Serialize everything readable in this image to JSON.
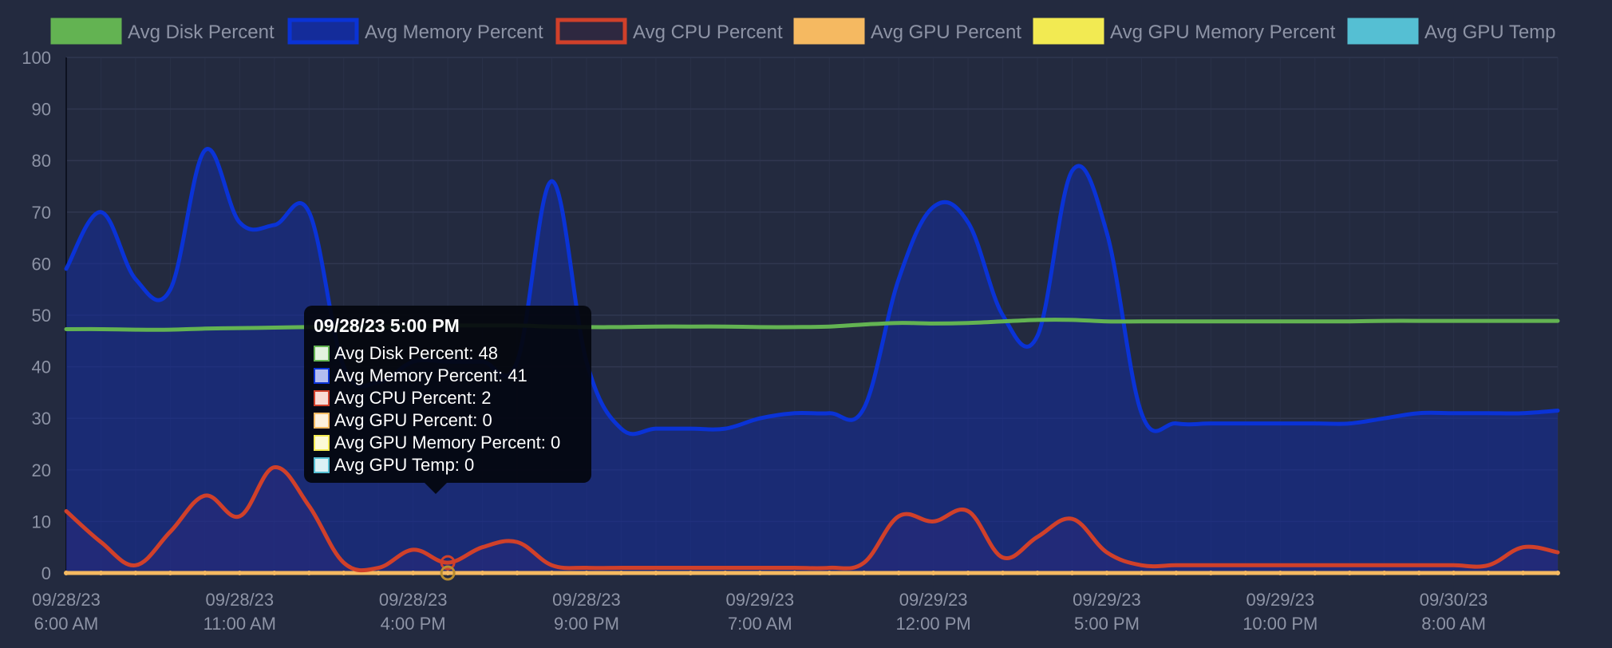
{
  "chart_data": {
    "type": "line",
    "ylim": [
      0,
      100
    ],
    "yticks": [
      0,
      10,
      20,
      30,
      40,
      50,
      60,
      70,
      80,
      90,
      100
    ],
    "x": [
      "09/28/23 6:00 AM",
      "09/28/23 7:00 AM",
      "09/28/23 8:00 AM",
      "09/28/23 9:00 AM",
      "09/28/23 10:00 AM",
      "09/28/23 11:00 AM",
      "09/28/23 12:00 PM",
      "09/28/23 1:00 PM",
      "09/28/23 2:00 PM",
      "09/28/23 3:00 PM",
      "09/28/23 4:00 PM",
      "09/28/23 5:00 PM",
      "09/28/23 6:00 PM",
      "09/28/23 7:00 PM",
      "09/28/23 8:00 PM",
      "09/28/23 9:00 PM",
      "09/28/23 10:00 PM",
      "09/28/23 11:00 PM",
      "09/29/23 5:00 AM",
      "09/29/23 6:00 AM",
      "09/29/23 7:00 AM",
      "09/29/23 8:00 AM",
      "09/29/23 9:00 AM",
      "09/29/23 10:00 AM",
      "09/29/23 11:00 AM",
      "09/29/23 12:00 PM",
      "09/29/23 1:00 PM",
      "09/29/23 2:00 PM",
      "09/29/23 3:00 PM",
      "09/29/23 4:00 PM",
      "09/29/23 5:00 PM",
      "09/29/23 6:00 PM",
      "09/29/23 7:00 PM",
      "09/29/23 8:00 PM",
      "09/29/23 9:00 PM",
      "09/29/23 10:00 PM",
      "09/29/23 11:00 PM",
      "09/30/23 12:00 AM",
      "09/30/23 6:00 AM",
      "09/30/23 7:00 AM",
      "09/30/23 8:00 AM",
      "09/30/23 9:00 AM",
      "09/30/23 10:00 AM",
      "09/30/23 11:00 AM"
    ],
    "x_tick_labels": [
      [
        "09/28/23",
        "6:00 AM"
      ],
      [
        "09/28/23",
        "11:00 AM"
      ],
      [
        "09/28/23",
        "4:00 PM"
      ],
      [
        "09/28/23",
        "9:00 PM"
      ],
      [
        "09/29/23",
        "7:00 AM"
      ],
      [
        "09/29/23",
        "12:00 PM"
      ],
      [
        "09/29/23",
        "5:00 PM"
      ],
      [
        "09/29/23",
        "10:00 PM"
      ],
      [
        "09/30/23",
        "8:00 AM"
      ]
    ],
    "x_tick_indices": [
      0,
      5,
      10,
      15,
      20,
      25,
      30,
      35,
      40
    ],
    "series": [
      {
        "name": "Avg Disk Percent",
        "color": "#63b352",
        "fill": "none",
        "values": [
          47.3,
          47.3,
          47.2,
          47.2,
          47.4,
          47.5,
          47.6,
          47.7,
          47.7,
          47.7,
          47.8,
          48,
          48,
          48,
          47.8,
          47.7,
          47.7,
          47.8,
          47.8,
          47.8,
          47.7,
          47.7,
          47.8,
          48.2,
          48.5,
          48.4,
          48.5,
          48.8,
          49.1,
          49.1,
          48.8,
          48.8,
          48.8,
          48.8,
          48.8,
          48.8,
          48.8,
          48.8,
          48.9,
          48.9,
          48.9,
          48.9,
          48.9,
          48.9
        ]
      },
      {
        "name": "Avg Memory Percent",
        "color": "#0a33d6",
        "fill": "rgba(20,44,160,0.55)",
        "values": [
          59,
          70,
          57,
          55,
          82,
          68,
          67.5,
          70,
          40,
          37,
          41,
          41,
          41,
          41,
          76,
          41,
          28,
          28,
          28,
          28,
          30,
          31,
          31,
          32,
          57,
          71,
          68,
          50,
          46,
          78,
          66,
          31,
          29,
          29,
          29,
          29,
          29,
          29,
          30,
          31,
          31,
          31,
          31,
          31.5
        ]
      },
      {
        "name": "Avg CPU Percent",
        "color": "#d0402a",
        "fill": "rgba(90,40,90,0.30)",
        "values": [
          12,
          6,
          1.5,
          8,
          15,
          11,
          20.5,
          13,
          2,
          1,
          4.5,
          2,
          5,
          6,
          1.5,
          1,
          1,
          1,
          1,
          1,
          1,
          1,
          1,
          2,
          11,
          10,
          12,
          3,
          7,
          10.5,
          4,
          1.5,
          1.5,
          1.5,
          1.5,
          1.5,
          1.5,
          1.5,
          1.5,
          1.5,
          1.5,
          1.5,
          5,
          4
        ]
      },
      {
        "name": "Avg GPU Percent",
        "color": "#f5b961",
        "fill": "none",
        "values": [
          0,
          0,
          0,
          0,
          0,
          0,
          0,
          0,
          0,
          0,
          0,
          0,
          0,
          0,
          0,
          0,
          0,
          0,
          0,
          0,
          0,
          0,
          0,
          0,
          0,
          0,
          0,
          0,
          0,
          0,
          0,
          0,
          0,
          0,
          0,
          0,
          0,
          0,
          0,
          0,
          0,
          0,
          0,
          0
        ]
      },
      {
        "name": "Avg GPU Memory Percent",
        "color": "#f2ea52",
        "fill": "none",
        "values": [
          0,
          0,
          0,
          0,
          0,
          0,
          0,
          0,
          0,
          0,
          0,
          0,
          0,
          0,
          0,
          0,
          0,
          0,
          0,
          0,
          0,
          0,
          0,
          0,
          0,
          0,
          0,
          0,
          0,
          0,
          0,
          0,
          0,
          0,
          0,
          0,
          0,
          0,
          0,
          0,
          0,
          0,
          0,
          0
        ]
      },
      {
        "name": "Avg GPU Temp",
        "color": "#55bfd3",
        "fill": "none",
        "values": [
          0,
          0,
          0,
          0,
          0,
          0,
          0,
          0,
          0,
          0,
          0,
          0,
          0,
          0,
          0,
          0,
          0,
          0,
          0,
          0,
          0,
          0,
          0,
          0,
          0,
          0,
          0,
          0,
          0,
          0,
          0,
          0,
          0,
          0,
          0,
          0,
          0,
          0,
          0,
          0,
          0,
          0,
          0,
          0
        ]
      }
    ],
    "legend": [
      {
        "label": "Avg Disk Percent",
        "swatch_fill": "#63b352",
        "swatch_border": "#63b352"
      },
      {
        "label": "Avg Memory Percent",
        "swatch_fill": "#142c9a",
        "swatch_border": "#0a33d6"
      },
      {
        "label": "Avg CPU Percent",
        "swatch_fill": "#2e2840",
        "swatch_border": "#d0402a"
      },
      {
        "label": "Avg GPU Percent",
        "swatch_fill": "#f5b961",
        "swatch_border": "#f5b961"
      },
      {
        "label": "Avg GPU Memory Percent",
        "swatch_fill": "#f2ea52",
        "swatch_border": "#f2ea52"
      },
      {
        "label": "Avg GPU Temp",
        "swatch_fill": "#55bfd3",
        "swatch_border": "#55bfd3"
      }
    ],
    "legend_position": "top",
    "grid": true,
    "colors": {
      "background": "#232a3f",
      "grid": "#303750",
      "tick_text": "#8d93a5"
    }
  },
  "tooltip": {
    "title": "09/28/23 5:00 PM",
    "active_index": 11,
    "rows": [
      {
        "text": "Avg Disk Percent: 48",
        "swatch_bg": "#e3f2df",
        "swatch_border": "#63b352"
      },
      {
        "text": "Avg Memory Percent: 41",
        "swatch_bg": "#b4bdf0",
        "swatch_border": "#0a33d6"
      },
      {
        "text": "Avg CPU Percent: 2",
        "swatch_bg": "#f9dbd5",
        "swatch_border": "#d0402a"
      },
      {
        "text": "Avg GPU Percent: 0",
        "swatch_bg": "#fdf1de",
        "swatch_border": "#f5b961"
      },
      {
        "text": "Avg GPU Memory Percent: 0",
        "swatch_bg": "#fcfad7",
        "swatch_border": "#f2ea52"
      },
      {
        "text": "Avg GPU Temp: 0",
        "swatch_bg": "#dbf1f5",
        "swatch_border": "#55bfd3"
      }
    ]
  }
}
